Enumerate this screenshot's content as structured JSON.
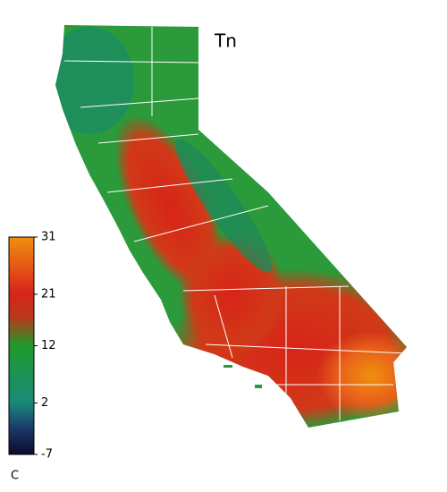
{
  "title": "Tn",
  "colorbar": {
    "unit": "C",
    "lim": [
      -7,
      31
    ],
    "ticks": [
      31,
      21,
      12,
      2,
      -7
    ]
  }
}
